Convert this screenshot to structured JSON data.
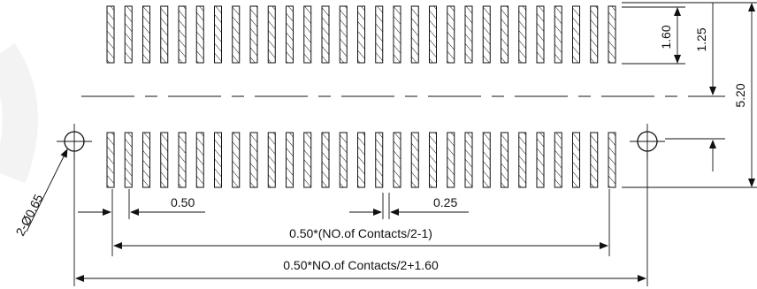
{
  "drawing": {
    "type": "connector-pcb-footprint",
    "pad_rows": 2,
    "pads_per_row_drawn": 29,
    "pad_fill": "hatched",
    "line_color": "#111111",
    "background_color": "#ffffff"
  },
  "dimensions": {
    "pad_length": "1.60",
    "pad_to_center": "1.25",
    "row_span": "5.20",
    "pitch": "0.50",
    "pad_width": "0.25",
    "pad_span_formula": "0.50*(NO.of Contacts/2-1)",
    "hole_span_formula": "0.50*NO.of Contacts/2+1.60",
    "holes": "2-Ø0.65"
  }
}
